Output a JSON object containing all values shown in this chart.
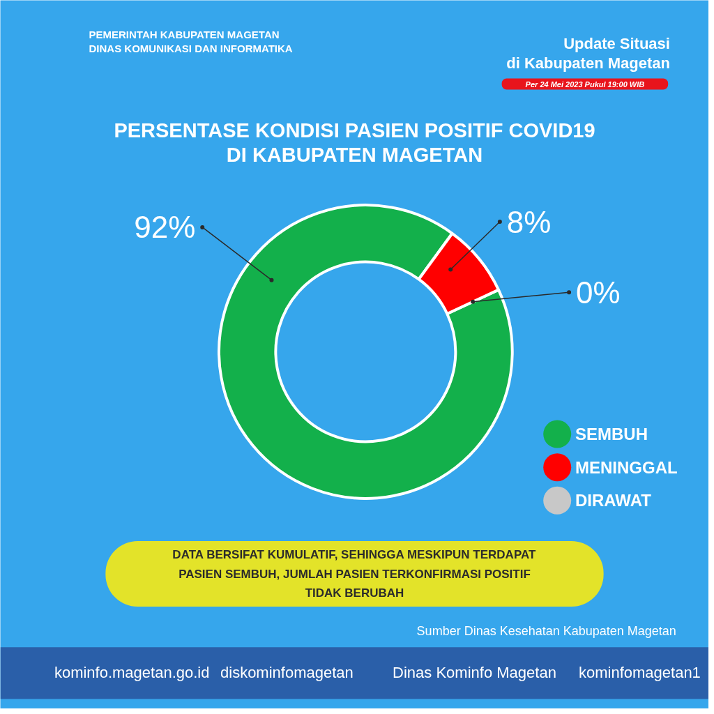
{
  "chart_data": {
    "type": "donut",
    "title": "PERSENTASE KONDISI PASIEN POSITIF COVID19\nDI KABUPATEN MAGETAN",
    "categories": [
      "SEMBUH",
      "MENINGGAL",
      "DIRAWAT"
    ],
    "values": [
      92,
      8,
      0
    ],
    "colors": [
      "#13b04b",
      "#ff0000",
      "#c8c8c8"
    ],
    "value_labels": [
      "92%",
      "8%",
      "0%"
    ],
    "legend": "right",
    "annotations": [
      "PEMERINTAH KABUPATEN MAGETAN",
      "DINAS KOMUNIKASI DAN INFORMATIKA",
      "Update Situasi",
      "di Kabupaten Magetan",
      "Per 24 Mei 2023 Pukul 19:00 WIB",
      "DATA BERSIFAT KUMULATIF, SEHINGGA MESKIPUN TERDAPAT\nPASIEN SEMBUH, JUMLAH PASIEN TERKONFIRMASI POSITIF\nTIDAK BERUBAH",
      "Sumber Dinas Kesehatan Kabupaten Magetan",
      "kominfo.magetan.go.id",
      "diskominfomagetan",
      "Dinas Kominfo Magetan",
      "kominfomagetan1"
    ]
  }
}
